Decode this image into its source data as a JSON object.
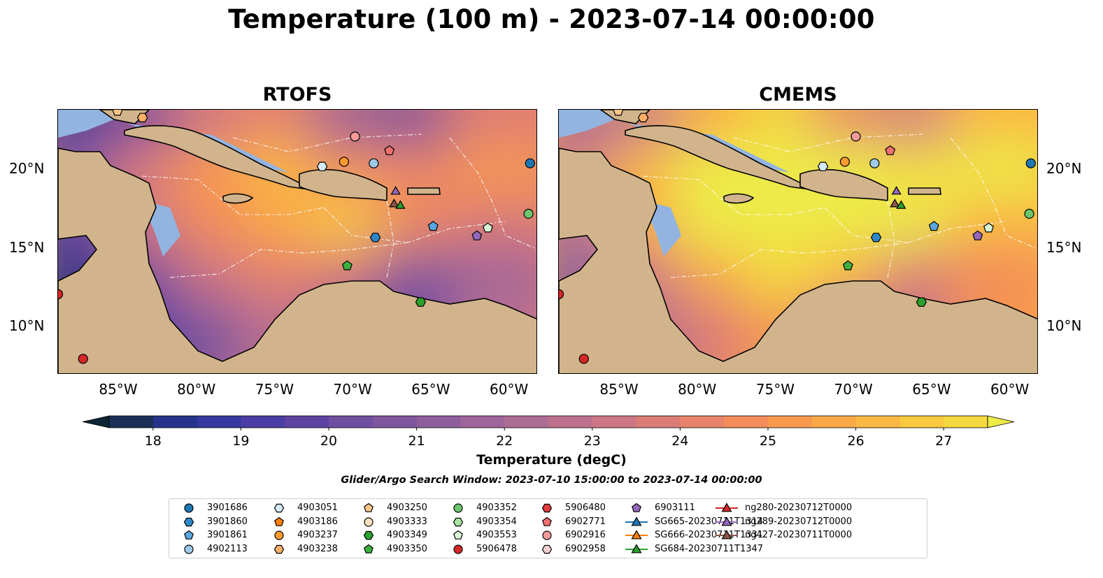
{
  "title": "Temperature (100 m) - 2023-07-14 00:00:00",
  "panels": [
    {
      "title": "RTOFS",
      "palette": "warm-low"
    },
    {
      "title": "CMEMS",
      "palette": "warm-high"
    }
  ],
  "axes": {
    "lon_labels": [
      "85°W",
      "80°W",
      "75°W",
      "70°W",
      "65°W",
      "60°W"
    ],
    "lon_values": [
      -85,
      -80,
      -75,
      -70,
      -65,
      -60
    ],
    "lat_labels": [
      "20°N",
      "15°N",
      "10°N"
    ],
    "lat_values": [
      20,
      15,
      10
    ],
    "extent": {
      "lon_min": -89,
      "lon_max": -58.3,
      "lat_min": 7,
      "lat_max": 23.8
    }
  },
  "colorbar": {
    "label": "Temperature (degC)",
    "ticks": [
      "18",
      "19",
      "20",
      "21",
      "22",
      "23",
      "24",
      "25",
      "26",
      "27"
    ],
    "min": 17.5,
    "max": 27.5,
    "step": 0.5,
    "colors": [
      "#0c2534",
      "#1b2f56",
      "#25348a",
      "#35399e",
      "#4a3da4",
      "#5e43a3",
      "#6f4e9f",
      "#7f569e",
      "#8e5e9c",
      "#9e659a",
      "#ad6c95",
      "#bd718e",
      "#cd7685",
      "#db7c77",
      "#e7836a",
      "#f28c5a",
      "#f7994e",
      "#f9a847",
      "#fab843",
      "#f9c940",
      "#f4d940",
      "#eceb48"
    ]
  },
  "search_window": "Glider/Argo Search Window: 2023-07-10 15:00:00 to 2023-07-14 00:00:00",
  "legend": [
    {
      "label": "3901686",
      "marker": "circle",
      "color": "#1f77b4"
    },
    {
      "label": "3901860",
      "marker": "hexagon",
      "color": "#2e88c8"
    },
    {
      "label": "3901861",
      "marker": "pentagon",
      "color": "#5aa7e0"
    },
    {
      "label": "4902113",
      "marker": "circle",
      "color": "#9ecae9"
    },
    {
      "label": "4903051",
      "marker": "hexagon",
      "color": "#d6eaf8"
    },
    {
      "label": "4903186",
      "marker": "pentagon",
      "color": "#ff7f0e"
    },
    {
      "label": "4903237",
      "marker": "circle",
      "color": "#ff9a2e"
    },
    {
      "label": "4903238",
      "marker": "hexagon",
      "color": "#ffb066"
    },
    {
      "label": "4903250",
      "marker": "pentagon",
      "color": "#ffc48a"
    },
    {
      "label": "4903333",
      "marker": "circle",
      "color": "#ffe0c0"
    },
    {
      "label": "4903349",
      "marker": "hexagon",
      "color": "#2ca02c"
    },
    {
      "label": "4903350",
      "marker": "pentagon",
      "color": "#3eb03e"
    },
    {
      "label": "4903352",
      "marker": "circle",
      "color": "#6cc76c"
    },
    {
      "label": "4903354",
      "marker": "hexagon",
      "color": "#a6e3a1"
    },
    {
      "label": "4903553",
      "marker": "pentagon",
      "color": "#d8f5d4"
    },
    {
      "label": "5906478",
      "marker": "circle",
      "color": "#d62728"
    },
    {
      "label": "5906480",
      "marker": "hexagon",
      "color": "#e03c3c"
    },
    {
      "label": "6902771",
      "marker": "pentagon",
      "color": "#f07070"
    },
    {
      "label": "6902916",
      "marker": "circle",
      "color": "#f59a9a"
    },
    {
      "label": "6902958",
      "marker": "hexagon",
      "color": "#fcd0d0"
    },
    {
      "label": "6903111",
      "marker": "pentagon",
      "color": "#9467bd"
    },
    {
      "label": "SG665-20230711T1314",
      "marker": "triangle-line",
      "color": "#1f77b4"
    },
    {
      "label": "SG666-20230711T1331",
      "marker": "triangle-line",
      "color": "#ff7f0e"
    },
    {
      "label": "SG684-20230711T1347",
      "marker": "triangle-line",
      "color": "#2ca02c"
    },
    {
      "label": "ng280-20230712T0000",
      "marker": "triangle-line",
      "color": "#d62728"
    },
    {
      "label": "ng289-20230712T0000",
      "marker": "triangle-line",
      "color": "#9467bd"
    },
    {
      "label": "ng427-20230711T0000",
      "marker": "triangle-line",
      "color": "#8c564b"
    }
  ],
  "platforms": [
    {
      "id": "3901686",
      "lon": -58.8,
      "lat": 20.4
    },
    {
      "id": "3901860",
      "lon": -68.7,
      "lat": 15.7
    },
    {
      "id": "3901861",
      "lon": -65.0,
      "lat": 16.4
    },
    {
      "id": "4902113",
      "lon": -68.8,
      "lat": 20.4
    },
    {
      "id": "4903051",
      "lon": -72.1,
      "lat": 20.2
    },
    {
      "id": "4903237",
      "lon": -70.7,
      "lat": 20.5
    },
    {
      "id": "4903250",
      "lon": -85.2,
      "lat": 23.7
    },
    {
      "id": "4903238",
      "lon": -83.6,
      "lat": 23.3
    },
    {
      "id": "4903350",
      "lon": -70.5,
      "lat": 13.9
    },
    {
      "id": "4903352",
      "lon": -58.9,
      "lat": 17.2
    },
    {
      "id": "4903349",
      "lon": -65.8,
      "lat": 11.6
    },
    {
      "id": "5906478",
      "lon": -87.4,
      "lat": 8.0
    },
    {
      "id": "5906478",
      "lon": -89.0,
      "lat": 12.1
    },
    {
      "id": "6902771",
      "lon": -67.8,
      "lat": 21.2
    },
    {
      "id": "6902916",
      "lon": -70.0,
      "lat": 22.1
    },
    {
      "id": "6903111",
      "lon": -62.2,
      "lat": 15.8
    },
    {
      "id": "4903553",
      "lon": -61.5,
      "lat": 16.3
    },
    {
      "id": "ng289-20230712T0000",
      "lon": -67.4,
      "lat": 18.6
    },
    {
      "id": "ng427-20230711T0000",
      "lon": -67.5,
      "lat": 17.8
    },
    {
      "id": "SG684-20230711T1347",
      "lon": -67.1,
      "lat": 17.7
    }
  ]
}
